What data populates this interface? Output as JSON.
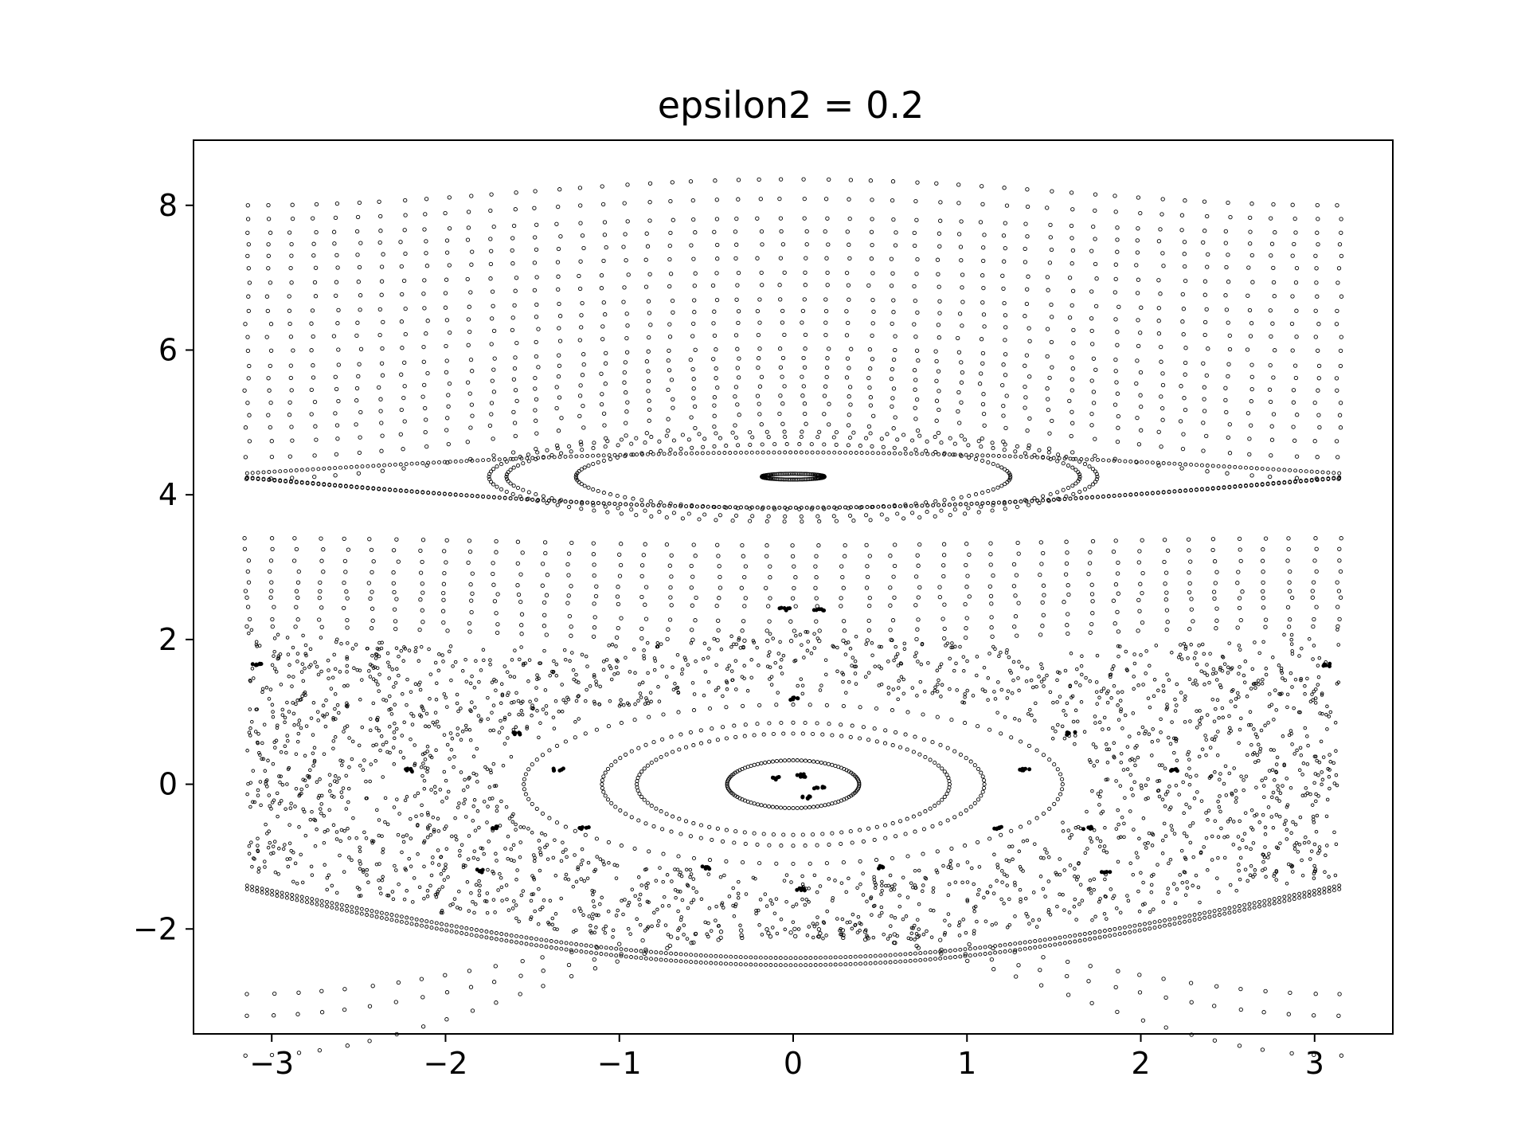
{
  "chart_data": {
    "type": "scatter",
    "title": "epsilon2 = 0.2",
    "xlabel": "",
    "ylabel": "",
    "xlim": [
      -3.45,
      3.45
    ],
    "ylim": [
      -3.45,
      8.9
    ],
    "xticks": [
      -3,
      -2,
      -1,
      0,
      1,
      2,
      3
    ],
    "xtick_labels": [
      "−3",
      "−2",
      "−1",
      "0",
      "1",
      "2",
      "3"
    ],
    "yticks": [
      -2,
      0,
      2,
      4,
      6,
      8
    ],
    "ytick_labels": [
      "−2",
      "0",
      "2",
      "4",
      "6",
      "8"
    ],
    "grid": false,
    "legend": "none",
    "marker_color": "#000000",
    "series": [
      {
        "kind": "rotational_orbits_upper",
        "points_per_orbit": 50,
        "orbits": [
          {
            "y0": 8.18,
            "amp": 0.18
          },
          {
            "y0": 7.95,
            "amp": 0.14
          },
          {
            "y0": 7.72,
            "amp": 0.1
          },
          {
            "y0": 7.55,
            "amp": 0.09
          },
          {
            "y0": 7.38,
            "amp": 0.08
          },
          {
            "y0": 7.2,
            "amp": 0.07
          },
          {
            "y0": 7.0,
            "amp": 0.07
          },
          {
            "y0": 6.82,
            "amp": 0.08
          },
          {
            "y0": 6.62,
            "amp": 0.08
          },
          {
            "y0": 6.45,
            "amp": 0.09
          },
          {
            "y0": 6.28,
            "amp": 0.1
          },
          {
            "y0": 6.1,
            "amp": 0.11
          },
          {
            "y0": 5.9,
            "amp": 0.12
          },
          {
            "y0": 5.75,
            "amp": 0.14
          },
          {
            "y0": 5.6,
            "amp": 0.16
          },
          {
            "y0": 5.45,
            "amp": 0.18
          },
          {
            "y0": 5.3,
            "amp": 0.2
          },
          {
            "y0": 5.15,
            "amp": 0.22
          },
          {
            "y0": 5.0,
            "amp": 0.26
          },
          {
            "y0": 4.82,
            "amp": 0.3
          },
          {
            "y0": 4.6,
            "amp": 0.38
          }
        ]
      },
      {
        "kind": "separatrix_upper",
        "points_per_branch": 200,
        "branches": [
          {
            "center": 4.0,
            "amp": 0.8,
            "sign": 1
          },
          {
            "center": 4.0,
            "amp": 0.78,
            "sign": 1
          },
          {
            "center": 4.0,
            "amp": 0.55,
            "sign": -1
          }
        ]
      },
      {
        "kind": "libration_island_upper",
        "center": [
          0,
          4.25
        ],
        "points_per_curve": 110,
        "curves": [
          {
            "a": 0.18,
            "b": 0.04
          },
          {
            "a": 1.25,
            "b": 0.45
          },
          {
            "a": 1.65,
            "b": 0.55
          },
          {
            "a": 1.75,
            "b": 0.62
          }
        ]
      },
      {
        "kind": "rotational_orbits_middle",
        "points_per_orbit": 45,
        "orbits": [
          {
            "y0": 3.35,
            "amp": -0.05
          },
          {
            "y0": 3.2,
            "amp": -0.05
          },
          {
            "y0": 3.05,
            "amp": -0.04
          },
          {
            "y0": 2.9,
            "amp": -0.04
          },
          {
            "y0": 2.75,
            "amp": -0.04
          },
          {
            "y0": 2.62,
            "amp": -0.05
          },
          {
            "y0": 2.52,
            "amp": -0.06
          },
          {
            "y0": 2.35,
            "amp": -0.1
          },
          {
            "y0": 2.2,
            "amp": -0.08
          },
          {
            "y0": 2.08,
            "amp": -0.1
          }
        ]
      },
      {
        "kind": "chaotic_sea",
        "points": 2400,
        "y_range": [
          -2.15,
          2.2
        ]
      },
      {
        "kind": "libration_island_lower",
        "center": [
          0,
          0
        ],
        "points_per_curve": 100,
        "curves": [
          {
            "a": 0.38,
            "b": 0.33
          },
          {
            "a": 0.9,
            "b": 0.7
          },
          {
            "a": 1.1,
            "b": 0.85
          },
          {
            "a": 1.55,
            "b": 1.1
          }
        ]
      },
      {
        "kind": "secondary_island_points",
        "points": [
          [
            -0.1,
            0.08
          ],
          [
            0.08,
            -0.18
          ],
          [
            0.05,
            0.12
          ],
          [
            0.15,
            -0.05
          ],
          [
            -1.35,
            0.2
          ],
          [
            1.33,
            0.2
          ],
          [
            -1.2,
            -0.6
          ],
          [
            1.18,
            -0.6
          ],
          [
            0.0,
            1.18
          ],
          [
            0.5,
            -1.15
          ],
          [
            -0.5,
            -1.15
          ],
          [
            0.05,
            -1.45
          ],
          [
            -1.6,
            0.7
          ],
          [
            1.6,
            0.7
          ],
          [
            -1.7,
            -0.6
          ],
          [
            1.7,
            -0.6
          ],
          [
            -3.08,
            1.65
          ],
          [
            3.08,
            1.65
          ],
          [
            -0.05,
            2.42
          ],
          [
            0.15,
            2.42
          ],
          [
            -2.2,
            0.2
          ],
          [
            2.2,
            0.2
          ],
          [
            -1.8,
            -1.2
          ],
          [
            1.8,
            -1.2
          ]
        ]
      },
      {
        "kind": "separatrix_lower",
        "points_per_branch": 220,
        "branches": [
          {
            "center": -1.45,
            "amp": 1.05,
            "sign": -1
          },
          {
            "center": -1.4,
            "amp": 1.0,
            "sign": -1
          }
        ]
      },
      {
        "kind": "rotational_orbits_lower",
        "points_per_orbit": 45,
        "orbits": [
          {
            "y0": -2.45,
            "amp": 0.45
          },
          {
            "y0": -2.65,
            "amp": 0.55
          },
          {
            "y0": -2.9,
            "amp": 0.85
          }
        ]
      }
    ]
  }
}
